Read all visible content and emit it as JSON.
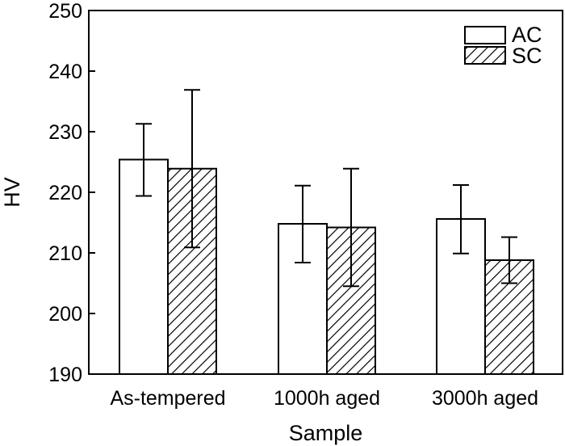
{
  "chart_data": {
    "type": "bar",
    "xlabel": "Sample",
    "ylabel": "HV",
    "ylim": [
      190,
      250
    ],
    "yticks": [
      190,
      200,
      210,
      220,
      230,
      240,
      250
    ],
    "categories": [
      "As-tempered",
      "1000h aged",
      "3000h aged"
    ],
    "series": [
      {
        "name": "AC",
        "pattern": "open",
        "values": [
          225.4,
          214.8,
          215.6
        ],
        "error_low": [
          219.4,
          208.4,
          209.9
        ],
        "error_high": [
          231.3,
          221.1,
          221.2
        ]
      },
      {
        "name": "SC",
        "pattern": "hatched",
        "values": [
          223.9,
          214.2,
          208.8
        ],
        "error_low": [
          210.9,
          204.5,
          205.0
        ],
        "error_high": [
          236.9,
          223.9,
          212.6
        ]
      }
    ],
    "legend": "top-right",
    "grid": false,
    "colors": {
      "bar_fill": "#ffffff",
      "stroke": "#000000",
      "hatch": "#000000"
    }
  }
}
